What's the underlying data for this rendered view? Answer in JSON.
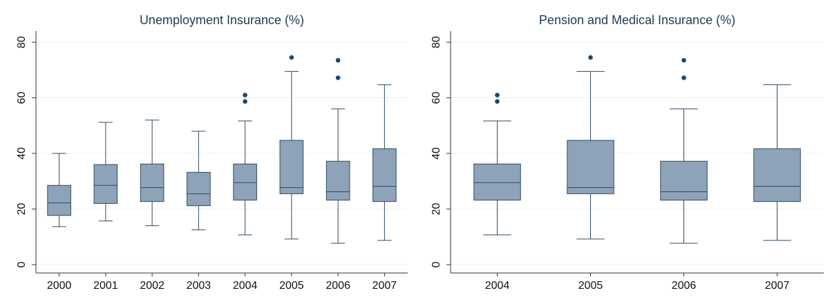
{
  "chart_data": [
    {
      "type": "box",
      "title": "Unemployment Insurance (%)",
      "categories": [
        "2000",
        "2001",
        "2002",
        "2003",
        "2004",
        "2005",
        "2006",
        "2007"
      ],
      "boxes": [
        {
          "min": 13.7,
          "q1": 17.7,
          "median": 22.2,
          "q3": 28.5,
          "max": 40
        },
        {
          "min": 15.7,
          "q1": 22,
          "median": 28.5,
          "q3": 36,
          "max": 51.2
        },
        {
          "min": 14,
          "q1": 22.7,
          "median": 27.7,
          "q3": 36.2,
          "max": 52
        },
        {
          "min": 12.5,
          "q1": 21.2,
          "median": 25.5,
          "q3": 33.2,
          "max": 48
        },
        {
          "min": 10.7,
          "q1": 23.2,
          "median": 29.5,
          "q3": 36.2,
          "max": 51.7,
          "outliers": [
            61,
            58.7
          ]
        },
        {
          "min": 9.2,
          "q1": 25.5,
          "median": 27.7,
          "q3": 44.7,
          "max": 69.5,
          "outliers": [
            74.5
          ]
        },
        {
          "min": 7.7,
          "q1": 23.2,
          "median": 26.2,
          "q3": 37.2,
          "max": 56,
          "outliers": [
            73.5,
            67.2
          ]
        },
        {
          "min": 8.7,
          "q1": 22.7,
          "median": 28.2,
          "q3": 41.7,
          "max": 64.7
        }
      ],
      "color": "#8ea3b8",
      "outlier_color": "#1a476f",
      "ylim": [
        -3,
        84
      ],
      "yticks": [
        0,
        20,
        40,
        60,
        80
      ],
      "grid": true
    },
    {
      "type": "box",
      "title": "Pension and Medical Insurance (%)",
      "categories": [
        "2004",
        "2005",
        "2006",
        "2007"
      ],
      "boxes": [
        {
          "min": 10.7,
          "q1": 23.2,
          "median": 29.5,
          "q3": 36.2,
          "max": 51.7,
          "outliers": [
            61,
            58.7
          ]
        },
        {
          "min": 9.2,
          "q1": 25.5,
          "median": 27.7,
          "q3": 44.7,
          "max": 69.5,
          "outliers": [
            74.5
          ]
        },
        {
          "min": 7.7,
          "q1": 23.2,
          "median": 26.2,
          "q3": 37.2,
          "max": 56,
          "outliers": [
            73.5,
            67.2
          ]
        },
        {
          "min": 8.7,
          "q1": 22.7,
          "median": 28.2,
          "q3": 41.7,
          "max": 64.7
        }
      ],
      "color": "#8ea3b8",
      "outlier_color": "#1a476f",
      "ylim": [
        -3,
        84
      ],
      "yticks": [
        0,
        20,
        40,
        60,
        80
      ],
      "grid": true
    }
  ]
}
